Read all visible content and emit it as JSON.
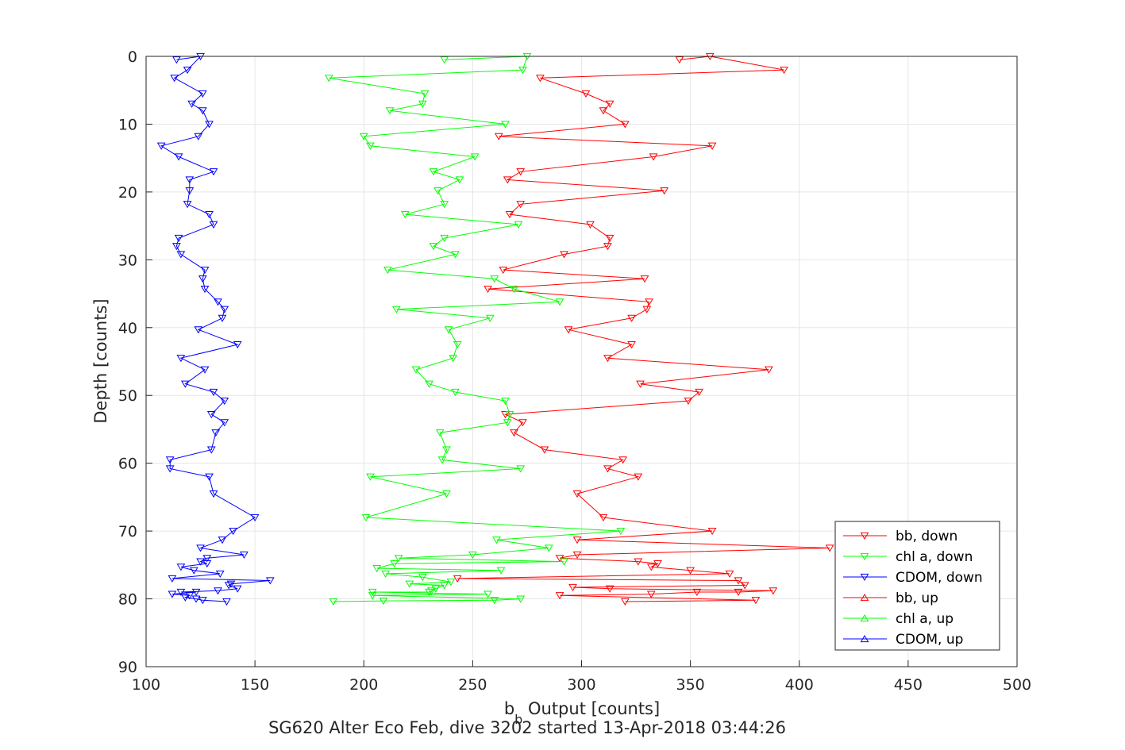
{
  "chart_data": {
    "type": "line",
    "xlabel_main": "b",
    "xlabel_sub": "b",
    "xlabel_rest": " Output [counts]",
    "ylabel": "Depth [counts]",
    "caption": "SG620 Alter Eco Feb, dive 3202 started 13-Apr-2018 03:44:26",
    "xlim": [
      100,
      500
    ],
    "ylim": [
      90,
      0
    ],
    "y_reversed": true,
    "grid": true,
    "legend_position": "bottom-right",
    "xticks": [
      "100",
      "150",
      "200",
      "250",
      "300",
      "350",
      "400",
      "450",
      "500"
    ],
    "yticks": [
      "0",
      "10",
      "20",
      "30",
      "40",
      "50",
      "60",
      "70",
      "80",
      "90"
    ],
    "series": [
      {
        "name": "bb, down",
        "color": "#ff0000",
        "marker": "down",
        "points": [
          [
            345,
            0.5
          ],
          [
            359,
            0
          ],
          [
            393,
            2
          ],
          [
            281,
            3.2
          ],
          [
            302,
            5.5
          ],
          [
            313,
            7
          ],
          [
            310,
            8
          ],
          [
            320,
            10
          ],
          [
            262,
            11.8
          ],
          [
            360,
            13.2
          ],
          [
            333,
            14.8
          ],
          [
            272,
            17
          ],
          [
            266,
            18.2
          ],
          [
            338,
            19.8
          ],
          [
            272,
            21.8
          ],
          [
            267,
            23.3
          ],
          [
            304,
            24.8
          ],
          [
            313,
            26.8
          ],
          [
            312,
            28
          ],
          [
            292,
            29.2
          ],
          [
            264,
            31.5
          ],
          [
            329,
            32.8
          ],
          [
            257,
            34.3
          ],
          [
            331,
            36.2
          ],
          [
            330,
            37.3
          ],
          [
            323,
            38.6
          ],
          [
            294,
            40.3
          ],
          [
            323,
            42.5
          ],
          [
            312,
            44.5
          ],
          [
            386,
            46.2
          ],
          [
            327,
            48.3
          ],
          [
            354,
            49.5
          ],
          [
            349,
            50.8
          ],
          [
            265,
            52.8
          ],
          [
            273,
            54
          ],
          [
            269,
            55.5
          ],
          [
            283,
            58
          ],
          [
            319,
            59.5
          ],
          [
            312,
            60.8
          ],
          [
            326,
            62
          ],
          [
            298,
            64.5
          ],
          [
            310,
            68
          ],
          [
            360,
            70
          ],
          [
            298,
            71.3
          ],
          [
            414,
            72.5
          ],
          [
            298,
            73.5
          ],
          [
            290,
            74
          ],
          [
            326,
            74.5
          ],
          [
            335,
            74.8
          ],
          [
            332,
            75.3
          ],
          [
            350,
            75.8
          ],
          [
            368,
            76.3
          ],
          [
            243,
            77
          ],
          [
            372,
            77.3
          ],
          [
            375,
            78
          ],
          [
            296,
            78.3
          ],
          [
            313,
            78.5
          ],
          [
            388,
            78.8
          ],
          [
            372,
            79
          ],
          [
            353,
            79
          ],
          [
            332,
            79.3
          ],
          [
            290,
            79.5
          ],
          [
            380,
            80.2
          ],
          [
            320,
            80.4
          ]
        ]
      },
      {
        "name": "chl a, down",
        "color": "#00ff00",
        "marker": "down",
        "points": [
          [
            237,
            0.5
          ],
          [
            275,
            0
          ],
          [
            273,
            2
          ],
          [
            184,
            3.2
          ],
          [
            228,
            5.5
          ],
          [
            227,
            7
          ],
          [
            212,
            8
          ],
          [
            265,
            10
          ],
          [
            200,
            11.8
          ],
          [
            203,
            13.2
          ],
          [
            251,
            14.8
          ],
          [
            232,
            17
          ],
          [
            244,
            18.2
          ],
          [
            234,
            19.8
          ],
          [
            237,
            21.8
          ],
          [
            219,
            23.3
          ],
          [
            271,
            24.8
          ],
          [
            237,
            26.8
          ],
          [
            232,
            28
          ],
          [
            242,
            29.2
          ],
          [
            211,
            31.5
          ],
          [
            260,
            32.8
          ],
          [
            269,
            34.3
          ],
          [
            290,
            36.2
          ],
          [
            215,
            37.3
          ],
          [
            258,
            38.6
          ],
          [
            239,
            40.3
          ],
          [
            243,
            42.5
          ],
          [
            241,
            44.5
          ],
          [
            224,
            46.2
          ],
          [
            230,
            48.3
          ],
          [
            242,
            49.5
          ],
          [
            265,
            50.8
          ],
          [
            267,
            52.8
          ],
          [
            266,
            54
          ],
          [
            235,
            55.5
          ],
          [
            238,
            58
          ],
          [
            236,
            59.5
          ],
          [
            272,
            60.8
          ],
          [
            203,
            62
          ],
          [
            238,
            64.5
          ],
          [
            201,
            68
          ],
          [
            318,
            70
          ],
          [
            261,
            71.3
          ],
          [
            285,
            72.5
          ],
          [
            250,
            73.5
          ],
          [
            216,
            74
          ],
          [
            292,
            74.5
          ],
          [
            214,
            74.8
          ],
          [
            206,
            75.5
          ],
          [
            263,
            75.8
          ],
          [
            210,
            76.3
          ],
          [
            227,
            76.8
          ],
          [
            240,
            77.5
          ],
          [
            221,
            77.8
          ],
          [
            237,
            78
          ],
          [
            233,
            78.5
          ],
          [
            231,
            78.8
          ],
          [
            230,
            79
          ],
          [
            204,
            79
          ],
          [
            257,
            79.3
          ],
          [
            204,
            79.5
          ],
          [
            272,
            80
          ],
          [
            260,
            80.2
          ],
          [
            209,
            80.3
          ],
          [
            186,
            80.4
          ]
        ]
      },
      {
        "name": "CDOM, down",
        "color": "#0000ff",
        "marker": "down",
        "points": [
          [
            114,
            0.5
          ],
          [
            125,
            0
          ],
          [
            119,
            2
          ],
          [
            113,
            3.2
          ],
          [
            126,
            5.5
          ],
          [
            121,
            7
          ],
          [
            126,
            8
          ],
          [
            129,
            10
          ],
          [
            124,
            11.8
          ],
          [
            107,
            13.2
          ],
          [
            115,
            14.8
          ],
          [
            131,
            17
          ],
          [
            120,
            18.2
          ],
          [
            120,
            19.8
          ],
          [
            119,
            21.8
          ],
          [
            129,
            23.3
          ],
          [
            131,
            24.8
          ],
          [
            115,
            26.8
          ],
          [
            114,
            28
          ],
          [
            116,
            29.2
          ],
          [
            127,
            31.5
          ],
          [
            126,
            32.8
          ],
          [
            127,
            34.3
          ],
          [
            133,
            36.2
          ],
          [
            136,
            37.3
          ],
          [
            135,
            38.6
          ],
          [
            124,
            40.3
          ],
          [
            142,
            42.5
          ],
          [
            116,
            44.5
          ],
          [
            127,
            46.2
          ],
          [
            118,
            48.3
          ],
          [
            131,
            49.5
          ],
          [
            136,
            50.8
          ],
          [
            130,
            52.8
          ],
          [
            136,
            54
          ],
          [
            132,
            55.5
          ],
          [
            130,
            58
          ],
          [
            111,
            59.5
          ],
          [
            111,
            60.8
          ],
          [
            129,
            62
          ],
          [
            131,
            64.5
          ],
          [
            150,
            68
          ],
          [
            140,
            70
          ],
          [
            135,
            71.3
          ],
          [
            125,
            72.5
          ],
          [
            145,
            73.5
          ],
          [
            128,
            74
          ],
          [
            125,
            74.5
          ],
          [
            128,
            74.8
          ],
          [
            116,
            75.3
          ],
          [
            122,
            75.8
          ],
          [
            134,
            76.3
          ],
          [
            112,
            77
          ],
          [
            157,
            77.3
          ],
          [
            139,
            77.8
          ],
          [
            138,
            78
          ],
          [
            142,
            78.5
          ],
          [
            133,
            78.8
          ],
          [
            116,
            79
          ],
          [
            123,
            79
          ],
          [
            112,
            79.3
          ],
          [
            120,
            79.5
          ],
          [
            118,
            79.8
          ],
          [
            123,
            80
          ],
          [
            126,
            80.2
          ],
          [
            137,
            80.4
          ]
        ]
      },
      {
        "name": "bb, up",
        "color": "#ff0000",
        "marker": "up",
        "points": []
      },
      {
        "name": "chl a, up",
        "color": "#00ff00",
        "marker": "up",
        "points": []
      },
      {
        "name": "CDOM, up",
        "color": "#0000ff",
        "marker": "up",
        "points": []
      }
    ]
  }
}
